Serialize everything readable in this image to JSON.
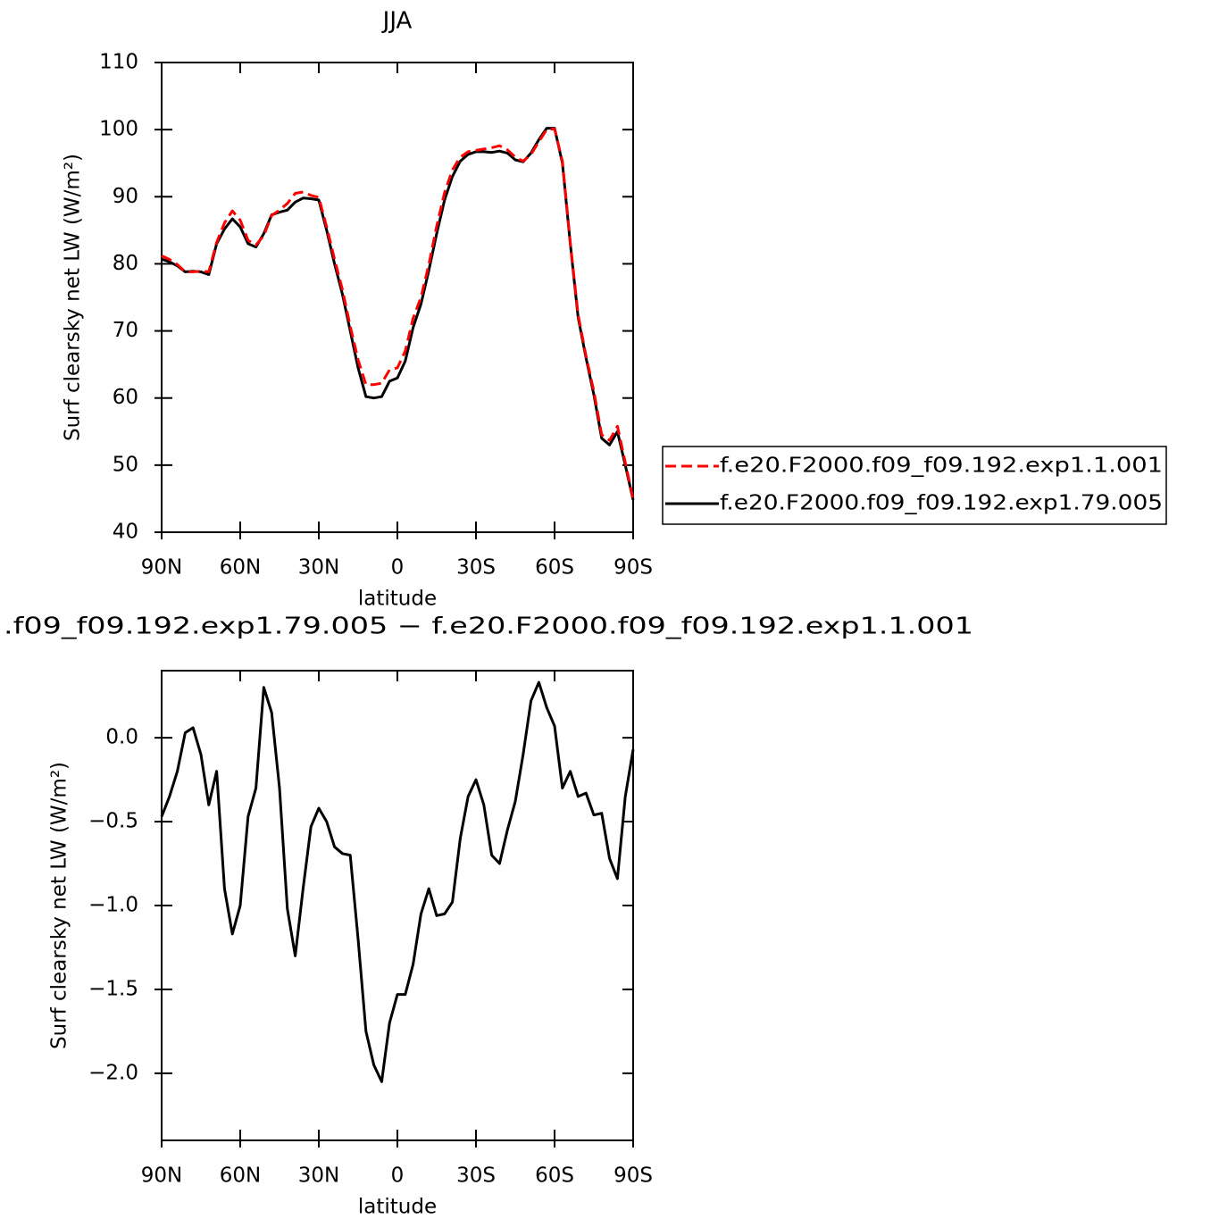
{
  "chart_data": [
    {
      "type": "line",
      "title": "JJA",
      "x": [
        90,
        87,
        84,
        81,
        78,
        75,
        72,
        69,
        66,
        63,
        60,
        57,
        54,
        51,
        48,
        45,
        42,
        39,
        36,
        33,
        30,
        27,
        24,
        21,
        18,
        15,
        12,
        9,
        6,
        3,
        0,
        -3,
        -6,
        -9,
        -12,
        -15,
        -18,
        -21,
        -24,
        -27,
        -30,
        -33,
        -36,
        -39,
        -42,
        -45,
        -48,
        -51,
        -54,
        -57,
        -60,
        -63,
        -66,
        -69,
        -72,
        -75,
        -78,
        -81,
        -84,
        -87,
        -90
      ],
      "series": [
        {
          "name": "f.e20.F2000.f09_f09.192.exp1.1.001",
          "color": "#ff0000",
          "line_style": "dashed",
          "values": [
            81.2,
            80.65,
            79.9,
            78.8,
            78.8,
            78.9,
            78.8,
            83.2,
            86.1,
            87.9,
            86.5,
            83.5,
            82.8,
            84.2,
            87.2,
            88,
            89,
            90.5,
            90.7,
            90.2,
            89.9,
            85.5,
            80.7,
            76.2,
            70.7,
            65.7,
            62,
            62,
            62.2,
            64.2,
            64.5,
            67,
            71.9,
            75,
            79.9,
            85.6,
            90.6,
            94,
            95.9,
            96.7,
            96.9,
            97.1,
            97.3,
            97.6,
            97,
            95.9,
            95.3,
            96.3,
            98.2,
            100,
            100.1,
            95.3,
            83.2,
            72.4,
            66.3,
            61,
            54.5,
            53.7,
            55.8,
            50.4,
            44.9
          ]
        },
        {
          "name": "f.e20.F2000.f09_f09.192.exp1.79.005",
          "color": "#000000",
          "line_style": "solid",
          "values": [
            80.7,
            80.3,
            79.7,
            78.8,
            78.9,
            78.8,
            78.4,
            83,
            85.2,
            86.7,
            85.5,
            83,
            82.5,
            84.5,
            87.3,
            87.7,
            88,
            89.2,
            89.8,
            89.7,
            89.5,
            85,
            80,
            75.5,
            70,
            64.5,
            60.2,
            60,
            60.2,
            62.5,
            63,
            65.5,
            70.5,
            74,
            79,
            84.5,
            89.5,
            93,
            95.3,
            96.3,
            96.7,
            96.7,
            96.6,
            96.8,
            96.5,
            95.5,
            95.2,
            96.5,
            98.5,
            100.2,
            100.2,
            95,
            83,
            72,
            66,
            60.5,
            54,
            53,
            55,
            50,
            44.8
          ]
        }
      ],
      "xlim": [
        90,
        -90
      ],
      "xticks": [
        {
          "value": 90,
          "label": "90N"
        },
        {
          "value": 60,
          "label": "60N"
        },
        {
          "value": 30,
          "label": "30N"
        },
        0,
        {
          "value": -30,
          "label": "30S"
        },
        {
          "value": -60,
          "label": "60S"
        },
        {
          "value": -90,
          "label": "90S"
        }
      ],
      "ylim": [
        40,
        110
      ],
      "yticks": [
        40,
        50,
        60,
        70,
        80,
        90,
        100,
        110
      ],
      "xlabel": "latitude",
      "ylabel": "Surf clearsky net LW (W/m²)",
      "legend": "right"
    },
    {
      "type": "line",
      "title": ".f09_f09.192.exp1.79.005 − f.e20.F2000.f09_f09.192.exp1.1.001",
      "x": [
        90,
        87,
        84,
        81,
        78,
        75,
        72,
        69,
        66,
        63,
        60,
        57,
        54,
        51,
        48,
        45,
        42,
        39,
        36,
        33,
        30,
        27,
        24,
        21,
        18,
        15,
        12,
        9,
        6,
        3,
        0,
        -3,
        -6,
        -9,
        -12,
        -15,
        -18,
        -21,
        -24,
        -27,
        -30,
        -33,
        -36,
        -39,
        -42,
        -45,
        -48,
        -51,
        -54,
        -57,
        -60,
        -63,
        -66,
        -69,
        -72,
        -75,
        -78,
        -81,
        -84,
        -87,
        -90
      ],
      "color": "#000000",
      "values": [
        -0.47,
        -0.35,
        -0.2,
        0.03,
        0.06,
        -0.1,
        -0.4,
        -0.2,
        -0.9,
        -1.17,
        -1.0,
        -0.47,
        -0.3,
        0.3,
        0.15,
        -0.3,
        -1.02,
        -1.3,
        -0.9,
        -0.53,
        -0.42,
        -0.5,
        -0.65,
        -0.69,
        -0.7,
        -1.2,
        -1.75,
        -1.95,
        -2.05,
        -1.7,
        -1.53,
        -1.53,
        -1.35,
        -1.05,
        -0.9,
        -1.06,
        -1.05,
        -0.98,
        -0.6,
        -0.35,
        -0.25,
        -0.4,
        -0.7,
        -0.75,
        -0.55,
        -0.38,
        -0.1,
        0.22,
        0.33,
        0.18,
        0.07,
        -0.3,
        -0.2,
        -0.35,
        -0.33,
        -0.46,
        -0.45,
        -0.72,
        -0.84,
        -0.35,
        -0.07
      ],
      "xlim": [
        90,
        -90
      ],
      "xticks": [
        {
          "value": 90,
          "label": "90N"
        },
        {
          "value": 60,
          "label": "60N"
        },
        {
          "value": 30,
          "label": "30N"
        },
        0,
        {
          "value": -30,
          "label": "30S"
        },
        {
          "value": -60,
          "label": "60S"
        },
        {
          "value": -90,
          "label": "90S"
        }
      ],
      "ylim": [
        -2.4,
        0.4
      ],
      "yticks": [
        {
          "value": -2,
          "label": "−2.0"
        },
        {
          "value": -1.5,
          "label": "−1.5"
        },
        {
          "value": -1,
          "label": "−1.0"
        },
        {
          "value": -0.5,
          "label": "−0.5"
        },
        {
          "value": 0,
          "label": "0.0"
        }
      ],
      "xlabel": "latitude",
      "ylabel": "Surf clearsky net LW (W/m²)"
    }
  ]
}
